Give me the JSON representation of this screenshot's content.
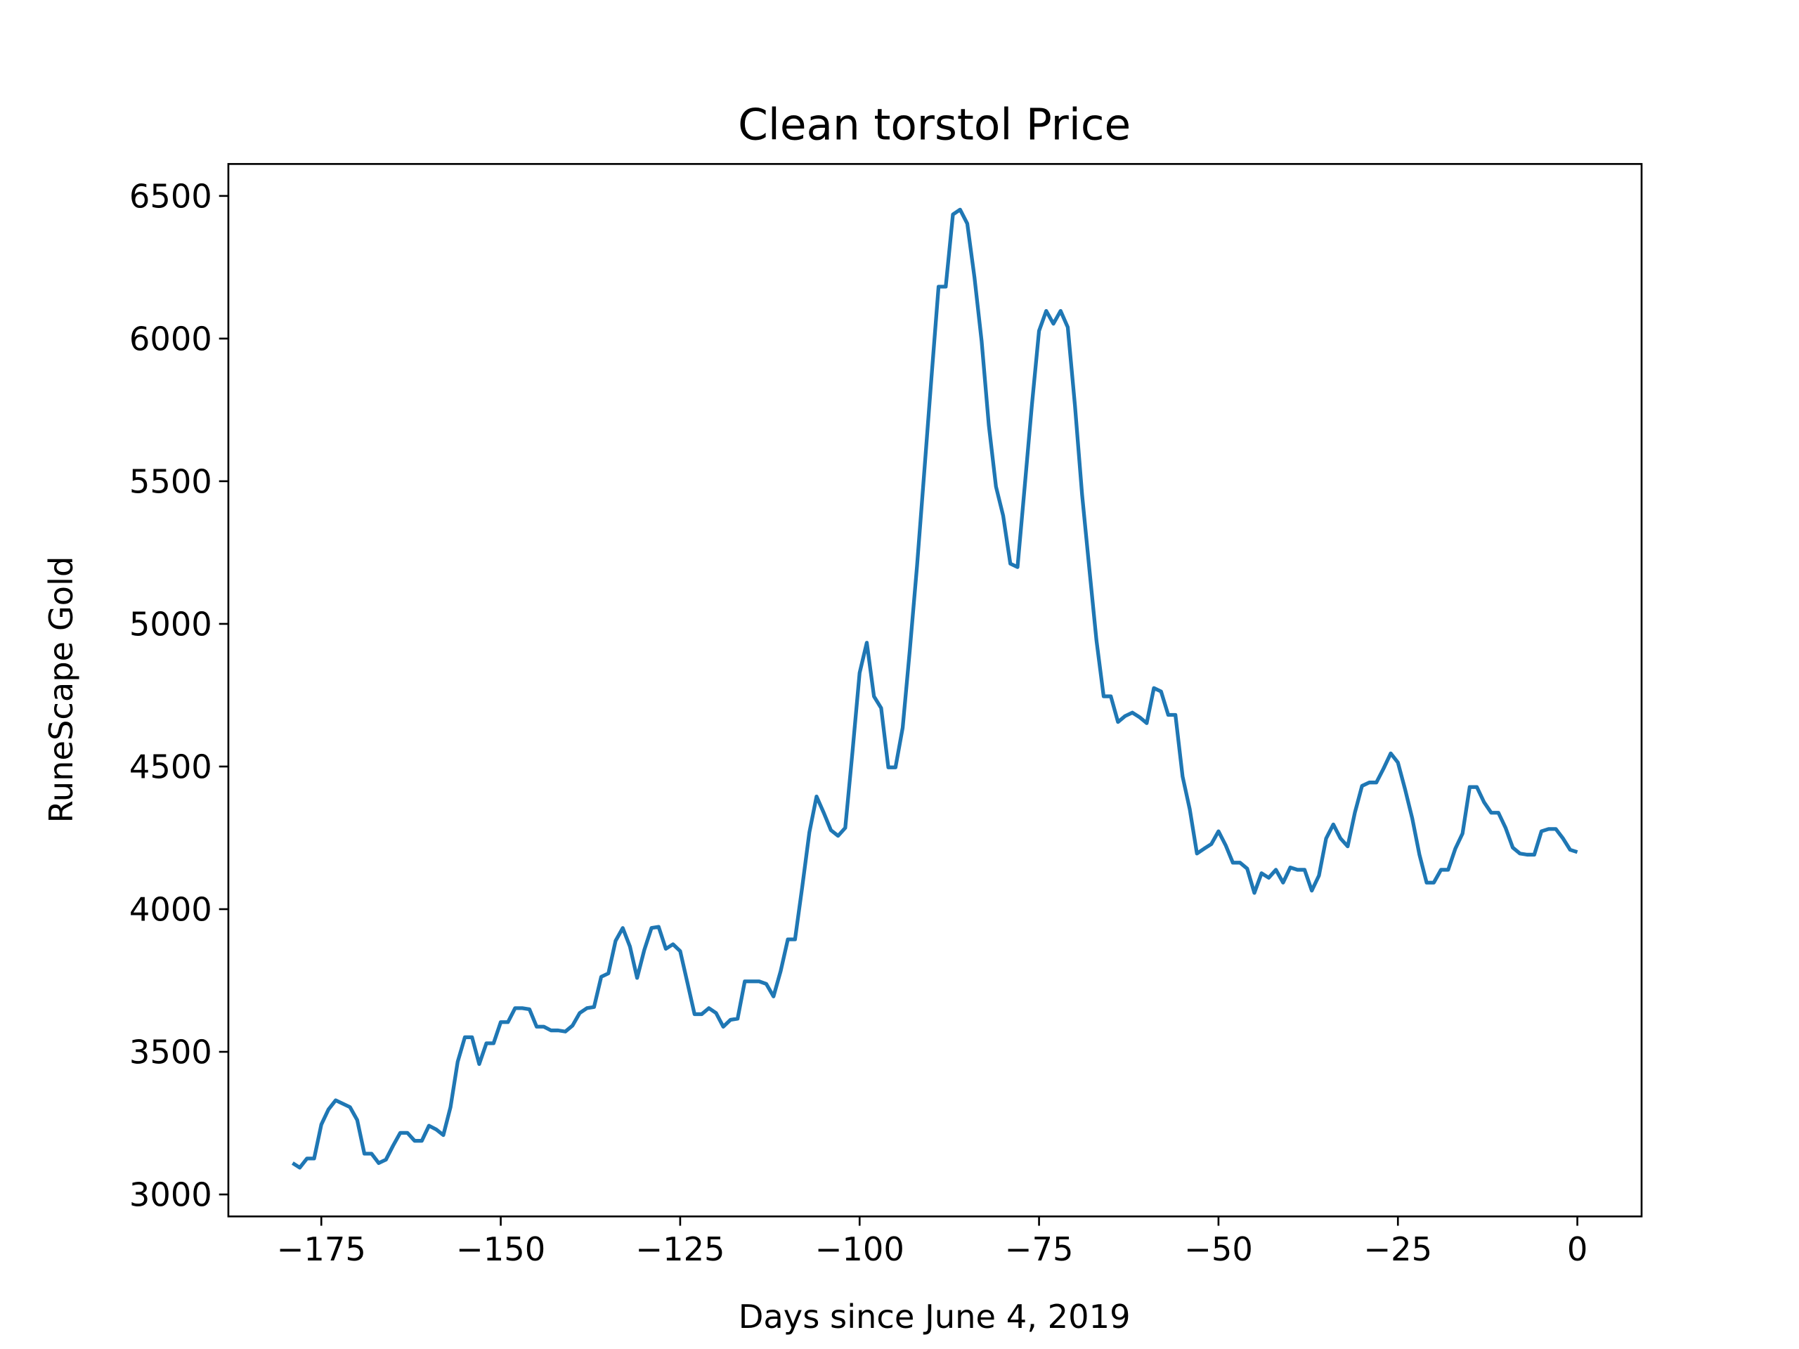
{
  "chart_data": {
    "type": "line",
    "title": "Clean torstol Price",
    "xlabel": "Days since June 4, 2019",
    "ylabel": "RuneScape Gold",
    "x": [
      -179,
      -178,
      -177,
      -176,
      -175,
      -174,
      -173,
      -172,
      -171,
      -170,
      -169,
      -168,
      -167,
      -166,
      -165,
      -164,
      -163,
      -162,
      -161,
      -160,
      -159,
      -158,
      -157,
      -156,
      -155,
      -154,
      -153,
      -152,
      -151,
      -150,
      -149,
      -148,
      -147,
      -146,
      -145,
      -144,
      -143,
      -142,
      -141,
      -140,
      -139,
      -138,
      -137,
      -136,
      -135,
      -134,
      -133,
      -132,
      -131,
      -130,
      -129,
      -128,
      -127,
      -126,
      -125,
      -124,
      -123,
      -122,
      -121,
      -120,
      -119,
      -118,
      -117,
      -116,
      -115,
      -114,
      -113,
      -112,
      -111,
      -110,
      -109,
      -108,
      -107,
      -106,
      -105,
      -104,
      -103,
      -102,
      -101,
      -100,
      -99,
      -98,
      -97,
      -96,
      -95,
      -94,
      -93,
      -92,
      -91,
      -90,
      -89,
      -88,
      -87,
      -86,
      -85,
      -84,
      -83,
      -82,
      -81,
      -80,
      -79,
      -78,
      -77,
      -76,
      -75,
      -74,
      -73,
      -72,
      -71,
      -70,
      -69,
      -68,
      -67,
      -66,
      -65,
      -64,
      -63,
      -62,
      -61,
      -60,
      -59,
      -58,
      -57,
      -56,
      -55,
      -54,
      -53,
      -52,
      -51,
      -50,
      -49,
      -48,
      -47,
      -46,
      -45,
      -44,
      -43,
      -42,
      -41,
      -40,
      -39,
      -38,
      -37,
      -36,
      -35,
      -34,
      -33,
      -32,
      -31,
      -30,
      -29,
      -28,
      -27,
      -26,
      -25,
      -24,
      -23,
      -22,
      -21,
      -20,
      -19,
      -18,
      -17,
      -16,
      -15,
      -14,
      -13,
      -12,
      -11,
      -10,
      -9,
      -8,
      -7,
      -6,
      -5,
      -4,
      -3,
      -2,
      -1,
      0
    ],
    "series": [
      {
        "name": "Clean torstol",
        "color": "#1f77b4",
        "values": [
          3110,
          3094,
          3126,
          3126,
          3245,
          3298,
          3330,
          3318,
          3306,
          3261,
          3143,
          3143,
          3110,
          3122,
          3171,
          3216,
          3216,
          3188,
          3188,
          3241,
          3228,
          3208,
          3306,
          3465,
          3551,
          3551,
          3457,
          3530,
          3530,
          3604,
          3604,
          3653,
          3653,
          3649,
          3588,
          3588,
          3575,
          3575,
          3571,
          3592,
          3636,
          3653,
          3657,
          3763,
          3775,
          3889,
          3934,
          3869,
          3759,
          3857,
          3934,
          3938,
          3861,
          3877,
          3853,
          3743,
          3632,
          3632,
          3653,
          3636,
          3588,
          3612,
          3616,
          3747,
          3747,
          3747,
          3738,
          3694,
          3783,
          3894,
          3894,
          4077,
          4269,
          4395,
          4338,
          4277,
          4257,
          4285,
          4550,
          4828,
          4934,
          4746,
          4705,
          4497,
          4497,
          4636,
          4910,
          5203,
          5530,
          5860,
          6182,
          6182,
          6435,
          6452,
          6403,
          6215,
          5991,
          5697,
          5481,
          5379,
          5211,
          5199,
          5481,
          5766,
          6027,
          6097,
          6052,
          6097,
          6040,
          5766,
          5452,
          5195,
          4942,
          4746,
          4746,
          4656,
          4677,
          4689,
          4673,
          4652,
          4775,
          4763,
          4681,
          4681,
          4465,
          4350,
          4195,
          4212,
          4228,
          4273,
          4224,
          4163,
          4163,
          4142,
          4057,
          4126,
          4110,
          4138,
          4093,
          4146,
          4138,
          4138,
          4065,
          4118,
          4248,
          4297,
          4248,
          4220,
          4338,
          4432,
          4444,
          4444,
          4493,
          4546,
          4514,
          4420,
          4318,
          4191,
          4093,
          4093,
          4138,
          4138,
          4212,
          4265,
          4428,
          4428,
          4375,
          4338,
          4338,
          4285,
          4216,
          4195,
          4191,
          4191,
          4273,
          4281,
          4281,
          4248,
          4208,
          4200
        ]
      }
    ],
    "xlim": [
      -187.95,
      8.95
    ],
    "ylim": [
      2923,
      6612
    ],
    "xticks": [
      {
        "value": -175,
        "label": "−175"
      },
      {
        "value": -150,
        "label": "−150"
      },
      {
        "value": -125,
        "label": "−125"
      },
      {
        "value": -100,
        "label": "−100"
      },
      {
        "value": -75,
        "label": "−75"
      },
      {
        "value": -50,
        "label": "−50"
      },
      {
        "value": -25,
        "label": "−25"
      },
      0
    ],
    "yticks": [
      3000,
      3500,
      4000,
      4500,
      5000,
      5500,
      6000,
      6500
    ]
  }
}
